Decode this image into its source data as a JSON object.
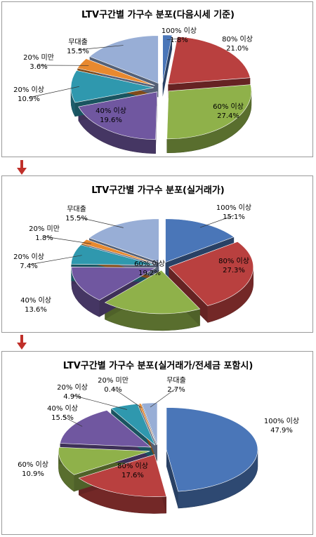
{
  "colors": {
    "100% 이상": "#4a76b8",
    "80% 이상": "#b9403f",
    "60% 이상": "#8fb14a",
    "40% 이상": "#7057a0",
    "20% 이상": "#2f98ae",
    "20% 미만": "#e8892f",
    "무대출": "#98aed6",
    "arrow": "#c0302a"
  },
  "chart_data": [
    {
      "type": "pie",
      "title": "LTV구간별 가구수 분포(다음시세 기준)",
      "slices": [
        {
          "name": "100% 이상",
          "label": "100% 이상",
          "value": 1.8,
          "value_label": "1.8%"
        },
        {
          "name": "80% 이상",
          "label": "80% 이상",
          "value": 21.0,
          "value_label": "21.0%"
        },
        {
          "name": "60% 이상",
          "label": "60% 이상",
          "value": 27.4,
          "value_label": "27.4%"
        },
        {
          "name": "40% 이상",
          "label": "40% 이상",
          "value": 19.6,
          "value_label": "19.6%"
        },
        {
          "name": "20% 이상",
          "label": "20% 이상",
          "value": 10.9,
          "value_label": "10.9%"
        },
        {
          "name": "20% 미만",
          "label": "20% 미만",
          "value": 3.6,
          "value_label": "3.6%"
        },
        {
          "name": "무대출",
          "label": "무대출",
          "value": 15.5,
          "value_label": "15.5%"
        }
      ]
    },
    {
      "type": "pie",
      "title": "LTV구간별 가구수 분포(실거래가)",
      "slices": [
        {
          "name": "100% 이상",
          "label": "100% 이상",
          "value": 15.1,
          "value_label": "15.1%"
        },
        {
          "name": "80% 이상",
          "label": "80% 이상",
          "value": 27.3,
          "value_label": "27.3%"
        },
        {
          "name": "60% 이상",
          "label": "60% 이상",
          "value": 19.2,
          "value_label": "19.2%"
        },
        {
          "name": "40% 이상",
          "label": "40% 이상",
          "value": 13.6,
          "value_label": "13.6%"
        },
        {
          "name": "20% 이상",
          "label": "20% 이상",
          "value": 7.4,
          "value_label": "7.4%"
        },
        {
          "name": "20% 미만",
          "label": "20% 미만",
          "value": 1.8,
          "value_label": "1.8%"
        },
        {
          "name": "무대출",
          "label": "무대출",
          "value": 15.5,
          "value_label": "15.5%"
        }
      ]
    },
    {
      "type": "pie",
      "title": "LTV구간별 가구수 분포(실거래가/전세금 포함시)",
      "slices": [
        {
          "name": "100% 이상",
          "label": "100% 이상",
          "value": 47.9,
          "value_label": "47.9%"
        },
        {
          "name": "80% 이상",
          "label": "80% 이상",
          "value": 17.6,
          "value_label": "17.6%"
        },
        {
          "name": "60% 이상",
          "label": "60% 이상",
          "value": 10.9,
          "value_label": "10.9%"
        },
        {
          "name": "40% 이상",
          "label": "40% 이상",
          "value": 15.5,
          "value_label": "15.5%"
        },
        {
          "name": "20% 이상",
          "label": "20% 이상",
          "value": 4.9,
          "value_label": "4.9%"
        },
        {
          "name": "20% 미만",
          "label": "20% 미만",
          "value": 0.4,
          "value_label": "0.4%"
        },
        {
          "name": "무대출",
          "label": "무대출",
          "value": 2.7,
          "value_label": "2.7%"
        }
      ]
    }
  ]
}
